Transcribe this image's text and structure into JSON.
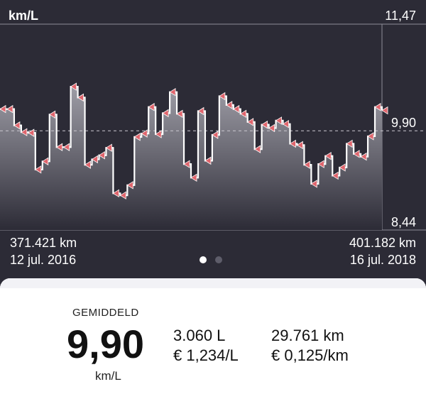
{
  "chart_data": {
    "type": "line",
    "ylabel": "km/L",
    "yticks": [
      "11,47",
      "9,90",
      "8,44"
    ],
    "ylim": [
      8.44,
      11.47
    ],
    "average": 9.9,
    "grid": "horizontal dashed average line",
    "series": [
      {
        "values": [
          10.22,
          10.22,
          9.98,
          9.88,
          9.87,
          9.33,
          9.45,
          10.14,
          9.66,
          9.66,
          10.55,
          10.39,
          9.4,
          9.48,
          9.54,
          9.65,
          8.98,
          8.95,
          9.1,
          9.81,
          9.86,
          10.25,
          9.85,
          10.16,
          10.47,
          10.15,
          9.41,
          9.21,
          10.19,
          9.46,
          9.84,
          10.41,
          10.28,
          10.22,
          10.15,
          10.03,
          9.63,
          9.99,
          9.94,
          10.05,
          10.0,
          9.71,
          9.69,
          9.4,
          9.12,
          9.41,
          9.53,
          9.24,
          9.36,
          9.71,
          9.56,
          9.52,
          9.82,
          10.25,
          10.2
        ]
      }
    ]
  },
  "colors": {
    "background": "#2c2b36",
    "line": "#ffffff",
    "marker": "#e0656d",
    "fill_top": "#a3a2ab",
    "fill_bottom": "#2c2b36"
  },
  "axis": {
    "unit": "km/L",
    "max_label": "11,47",
    "mid_label": "9,90",
    "min_label": "8,44"
  },
  "range": {
    "start_km": "371.421 km",
    "start_date": "12 jul. 2016",
    "end_km": "401.182 km",
    "end_date": "16 jul. 2018"
  },
  "pager": {
    "pages": 2,
    "active": 0
  },
  "summary": {
    "title": "GEMIDDELD",
    "value": "9,90",
    "unit": "km/L",
    "liters": "3.060 L",
    "price_per_liter": "€ 1,234/L",
    "distance": "29.761 km",
    "cost_per_km": "€ 0,125/km"
  }
}
